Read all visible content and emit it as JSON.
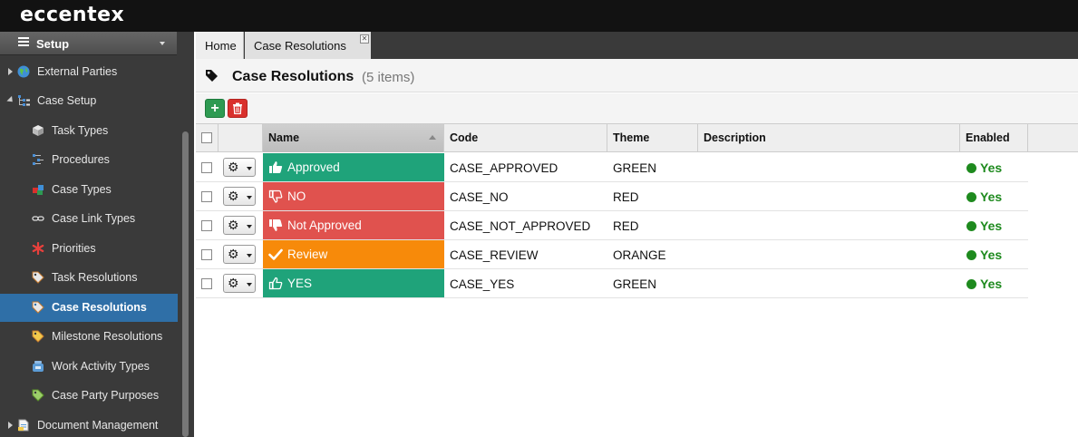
{
  "app": {
    "logo": "eccentex"
  },
  "sidebar": {
    "header": "Setup",
    "items": [
      {
        "label": "External Parties",
        "icon": "globe-icon",
        "level": 0,
        "expander": "collapsed"
      },
      {
        "label": "Case Setup",
        "icon": "tree-icon",
        "level": 0,
        "expander": "expanded"
      },
      {
        "label": "Task Types",
        "icon": "cube-icon",
        "level": 1
      },
      {
        "label": "Procedures",
        "icon": "procedure-icon",
        "level": 1
      },
      {
        "label": "Case Types",
        "icon": "cubes-icon",
        "level": 1
      },
      {
        "label": "Case Link Types",
        "icon": "link-icon",
        "level": 1
      },
      {
        "label": "Priorities",
        "icon": "asterisk-icon",
        "level": 1
      },
      {
        "label": "Task Resolutions",
        "icon": "tag-icon",
        "level": 1
      },
      {
        "label": "Case Resolutions",
        "icon": "tag-icon",
        "level": 1,
        "active": true
      },
      {
        "label": "Milestone Resolutions",
        "icon": "tag-icon",
        "level": 1
      },
      {
        "label": "Work Activity Types",
        "icon": "phone-icon",
        "level": 1
      },
      {
        "label": "Case Party Purposes",
        "icon": "tag-green-icon",
        "level": 1
      },
      {
        "label": "Document Management",
        "icon": "document-icon",
        "level": 0,
        "expander": "collapsed"
      }
    ]
  },
  "tabs": [
    {
      "label": "Home"
    },
    {
      "label": "Case Resolutions",
      "closable": true
    }
  ],
  "page": {
    "title": "Case Resolutions",
    "count": "(5 items)"
  },
  "toolbar": {
    "add_label": "+",
    "delete_icon": "trash-icon"
  },
  "grid": {
    "columns": [
      "Name",
      "Code",
      "Theme",
      "Description",
      "Enabled"
    ],
    "sorted_column": "Name",
    "rows": [
      {
        "name": "Approved",
        "icon": "thumbs-up-icon",
        "color": "#1fa37a",
        "code": "CASE_APPROVED",
        "theme": "GREEN",
        "description": "",
        "enabled": "Yes"
      },
      {
        "name": "NO",
        "icon": "thumbs-down-outline-icon",
        "color": "#e0524e",
        "code": "CASE_NO",
        "theme": "RED",
        "description": "",
        "enabled": "Yes"
      },
      {
        "name": "Not Approved",
        "icon": "thumbs-down-icon",
        "color": "#e0524e",
        "code": "CASE_NOT_APPROVED",
        "theme": "RED",
        "description": "",
        "enabled": "Yes"
      },
      {
        "name": "Review",
        "icon": "check-icon",
        "color": "#f78a0a",
        "code": "CASE_REVIEW",
        "theme": "ORANGE",
        "description": "",
        "enabled": "Yes"
      },
      {
        "name": "YES",
        "icon": "thumbs-up-outline-icon",
        "color": "#1fa37a",
        "code": "CASE_YES",
        "theme": "GREEN",
        "description": "",
        "enabled": "Yes"
      }
    ]
  }
}
